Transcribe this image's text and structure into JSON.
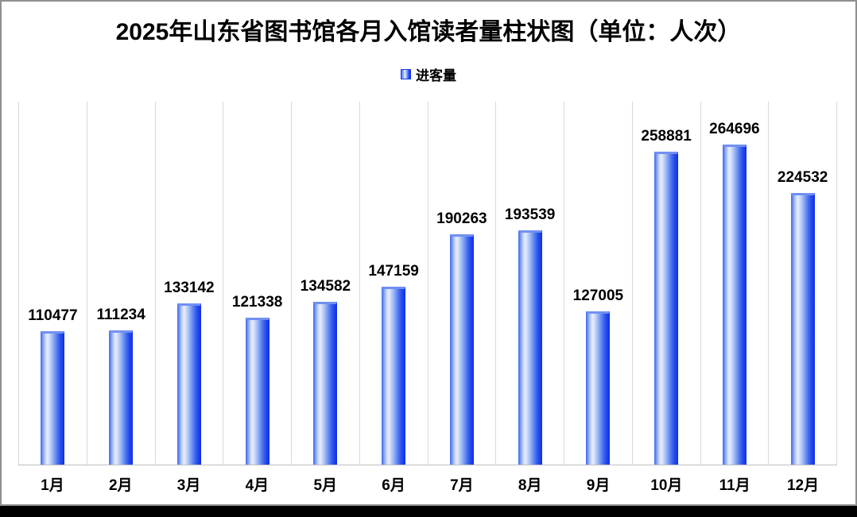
{
  "window": {
    "background": "#ffffff",
    "border_color": "#8f8f8f",
    "bottom_bar_color": "#000000"
  },
  "chart_data": {
    "type": "bar",
    "title": "2025年山东省图书馆各月入馆读者量柱状图（单位：人次）",
    "legend": {
      "label": "进客量",
      "position": "top-center"
    },
    "series_name": "进客量",
    "categories": [
      "1月",
      "2月",
      "3月",
      "4月",
      "5月",
      "6月",
      "7月",
      "8月",
      "9月",
      "10月",
      "11月",
      "12月"
    ],
    "values": [
      110477,
      111234,
      133142,
      121338,
      134582,
      147159,
      190263,
      193539,
      127005,
      258881,
      264696,
      224532
    ],
    "xlabel": "",
    "ylabel": "",
    "ylim": [
      0,
      300000
    ],
    "grid": "vertical-gridlines-only",
    "gridline_color": "#d9d9d9",
    "baseline_color": "#bfbfbf",
    "value_labels_shown": true,
    "bar_gradient": [
      "#4d76ef",
      "#e7eefc",
      "#1534ec"
    ],
    "bar_top_rim_color": "#7290f2"
  }
}
